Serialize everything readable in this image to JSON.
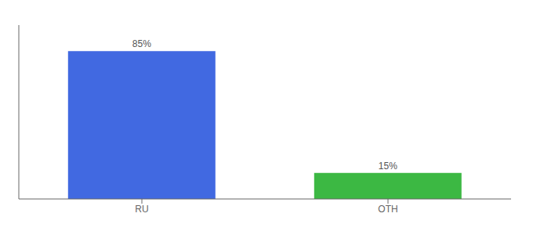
{
  "chart_data": {
    "type": "bar",
    "categories": [
      "RU",
      "OTH"
    ],
    "values": [
      85,
      15
    ],
    "value_labels": [
      "85%",
      "15%"
    ],
    "colors": [
      "#4169E1",
      "#3CB843"
    ],
    "data_labels": true,
    "ylim": [
      0,
      100
    ],
    "tick_labels": "x"
  }
}
